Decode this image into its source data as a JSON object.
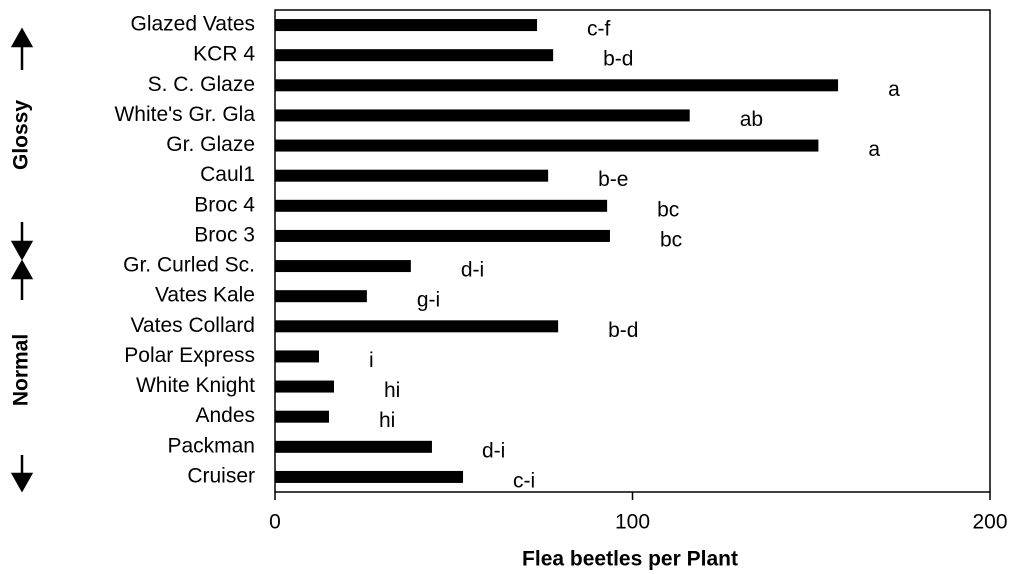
{
  "chart_data": {
    "type": "hbar",
    "categories": [
      "Glazed Vates",
      "KCR 4",
      "S. C. Glaze",
      "White's Gr. Gla",
      "Gr. Glaze",
      "Caul1",
      "Broc 4",
      "Broc 3",
      "Gr. Curled Sc.",
      "Vates Kale",
      "Vates Collard",
      "Polar Express",
      "White Knight",
      "Andes",
      "Packman",
      "Cruiser"
    ],
    "values": [
      73.3,
      77.8,
      157.5,
      116,
      152,
      76.4,
      92.9,
      93.7,
      38,
      25.7,
      79.2,
      12.3,
      16.5,
      15.1,
      43.9,
      52.6
    ],
    "annotations": [
      "c-f",
      "b-d",
      "a",
      "ab",
      "a",
      "b-e",
      "bc",
      "bc",
      "d-i",
      "g-i",
      "b-d",
      "i",
      "hi",
      "hi",
      "d-i",
      "c-i"
    ],
    "group_labels": [
      "Glossy",
      "Normal"
    ],
    "color": "#000000",
    "xlabel": "Flea beetles per Plant",
    "xlim": [
      0,
      200
    ],
    "xticks": [
      0,
      100,
      200
    ]
  }
}
